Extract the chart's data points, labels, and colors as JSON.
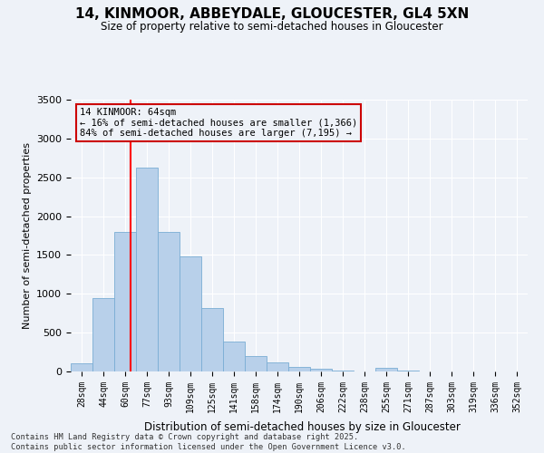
{
  "title": "14, KINMOOR, ABBEYDALE, GLOUCESTER, GL4 5XN",
  "subtitle": "Size of property relative to semi-detached houses in Gloucester",
  "xlabel": "Distribution of semi-detached houses by size in Gloucester",
  "ylabel": "Number of semi-detached properties",
  "categories": [
    "28sqm",
    "44sqm",
    "60sqm",
    "77sqm",
    "93sqm",
    "109sqm",
    "125sqm",
    "141sqm",
    "158sqm",
    "174sqm",
    "190sqm",
    "206sqm",
    "222sqm",
    "238sqm",
    "255sqm",
    "271sqm",
    "287sqm",
    "303sqm",
    "319sqm",
    "336sqm",
    "352sqm"
  ],
  "values": [
    100,
    950,
    1800,
    2630,
    1800,
    1480,
    820,
    390,
    200,
    120,
    60,
    30,
    10,
    5,
    50,
    10,
    5,
    3,
    2,
    2,
    2
  ],
  "bar_color": "#b8d0ea",
  "bar_edge_color": "#7aadd4",
  "property_line_x": 2.24,
  "property_size": "64sqm",
  "property_name": "14 KINMOOR",
  "pct_smaller": 16,
  "pct_larger": 84,
  "count_smaller": "1,366",
  "count_larger": "7,195",
  "ylim": [
    0,
    3500
  ],
  "yticks": [
    0,
    500,
    1000,
    1500,
    2000,
    2500,
    3000,
    3500
  ],
  "annotation_box_color": "#cc0000",
  "background_color": "#eef2f8",
  "grid_color": "#ffffff",
  "footer": "Contains HM Land Registry data © Crown copyright and database right 2025.\nContains public sector information licensed under the Open Government Licence v3.0."
}
